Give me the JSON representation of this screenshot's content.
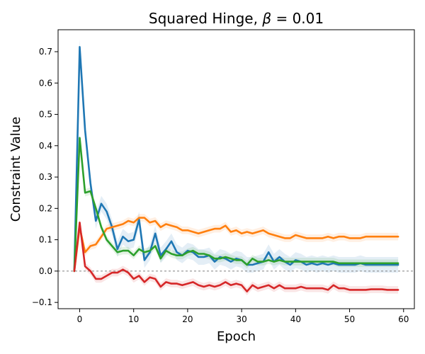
{
  "chart_data": {
    "type": "line",
    "title": "Squared Hinge, β = 0.01",
    "title_parts": {
      "main": "Squared Hinge, ",
      "symbol": "β",
      "rest": " = 0.01"
    },
    "xlabel": "Epoch",
    "ylabel": "Constraint Value",
    "xlim": [
      -4,
      62
    ],
    "ylim": [
      -0.12,
      0.77
    ],
    "xticks": [
      0,
      10,
      20,
      30,
      40,
      50,
      60
    ],
    "yticks": [
      -0.1,
      0.0,
      0.1,
      0.2,
      0.3,
      0.4,
      0.5,
      0.6,
      0.7
    ],
    "ytick_labels": [
      "−0.1",
      "0.0",
      "0.1",
      "0.2",
      "0.3",
      "0.4",
      "0.5",
      "0.6",
      "0.7"
    ],
    "xtick_labels": [
      "0",
      "10",
      "20",
      "30",
      "40",
      "50",
      "60"
    ],
    "reference_line": {
      "y": 0,
      "style": "dashed",
      "color": "#808080"
    },
    "x": [
      -1,
      0,
      1,
      2,
      3,
      4,
      5,
      6,
      7,
      8,
      9,
      10,
      11,
      12,
      13,
      14,
      15,
      16,
      17,
      18,
      19,
      20,
      21,
      22,
      23,
      24,
      25,
      26,
      27,
      28,
      29,
      30,
      31,
      32,
      33,
      34,
      35,
      36,
      37,
      38,
      39,
      40,
      41,
      42,
      43,
      44,
      45,
      46,
      47,
      48,
      49,
      50,
      51,
      52,
      53,
      54,
      55,
      56,
      57,
      58,
      59
    ],
    "series": [
      {
        "name": "blue",
        "color": "#1f77b4",
        "values": [
          0.0,
          0.715,
          0.45,
          0.28,
          0.16,
          0.215,
          0.19,
          0.14,
          0.07,
          0.11,
          0.095,
          0.1,
          0.165,
          0.035,
          0.06,
          0.12,
          0.05,
          0.07,
          0.095,
          0.06,
          0.05,
          0.065,
          0.06,
          0.045,
          0.045,
          0.05,
          0.03,
          0.045,
          0.04,
          0.03,
          0.04,
          0.035,
          0.02,
          0.02,
          0.025,
          0.03,
          0.06,
          0.03,
          0.045,
          0.03,
          0.02,
          0.035,
          0.03,
          0.02,
          0.025,
          0.02,
          0.025,
          0.02,
          0.025,
          0.02,
          0.02,
          0.02,
          0.02,
          0.025,
          0.02,
          0.02,
          0.02,
          0.02,
          0.02,
          0.02,
          0.02
        ],
        "band": 0.025
      },
      {
        "name": "orange",
        "color": "#ff7f0e",
        "values": [
          0.0,
          0.14,
          0.06,
          0.08,
          0.085,
          0.11,
          0.135,
          0.14,
          0.145,
          0.15,
          0.16,
          0.155,
          0.17,
          0.17,
          0.155,
          0.16,
          0.14,
          0.15,
          0.145,
          0.14,
          0.13,
          0.13,
          0.125,
          0.12,
          0.125,
          0.13,
          0.135,
          0.135,
          0.145,
          0.125,
          0.13,
          0.12,
          0.125,
          0.12,
          0.125,
          0.13,
          0.12,
          0.115,
          0.11,
          0.105,
          0.105,
          0.115,
          0.11,
          0.105,
          0.105,
          0.105,
          0.105,
          0.11,
          0.105,
          0.11,
          0.11,
          0.105,
          0.105,
          0.105,
          0.11,
          0.11,
          0.11,
          0.11,
          0.11,
          0.11,
          0.11
        ],
        "band": 0.012
      },
      {
        "name": "green",
        "color": "#2ca02c",
        "values": [
          0.0,
          0.425,
          0.25,
          0.255,
          0.2,
          0.14,
          0.1,
          0.08,
          0.06,
          0.065,
          0.065,
          0.05,
          0.07,
          0.06,
          0.065,
          0.08,
          0.04,
          0.065,
          0.055,
          0.05,
          0.05,
          0.06,
          0.065,
          0.055,
          0.055,
          0.05,
          0.04,
          0.04,
          0.045,
          0.04,
          0.035,
          0.035,
          0.02,
          0.04,
          0.03,
          0.03,
          0.035,
          0.03,
          0.035,
          0.03,
          0.03,
          0.03,
          0.03,
          0.03,
          0.03,
          0.03,
          0.03,
          0.03,
          0.03,
          0.025,
          0.025,
          0.025,
          0.025,
          0.025,
          0.025,
          0.025,
          0.025,
          0.025,
          0.025,
          0.025,
          0.025
        ],
        "band": 0.012
      },
      {
        "name": "red",
        "color": "#d62728",
        "values": [
          0.0,
          0.155,
          0.015,
          0.0,
          -0.025,
          -0.025,
          -0.015,
          -0.005,
          -0.005,
          0.005,
          -0.005,
          -0.025,
          -0.015,
          -0.035,
          -0.02,
          -0.025,
          -0.05,
          -0.035,
          -0.04,
          -0.04,
          -0.045,
          -0.04,
          -0.035,
          -0.045,
          -0.05,
          -0.045,
          -0.05,
          -0.045,
          -0.035,
          -0.045,
          -0.04,
          -0.045,
          -0.065,
          -0.045,
          -0.055,
          -0.05,
          -0.045,
          -0.055,
          -0.045,
          -0.055,
          -0.055,
          -0.055,
          -0.05,
          -0.055,
          -0.055,
          -0.055,
          -0.055,
          -0.06,
          -0.045,
          -0.055,
          -0.055,
          -0.06,
          -0.06,
          -0.06,
          -0.06,
          -0.058,
          -0.058,
          -0.058,
          -0.06,
          -0.06,
          -0.06
        ],
        "band": 0.012
      }
    ]
  }
}
